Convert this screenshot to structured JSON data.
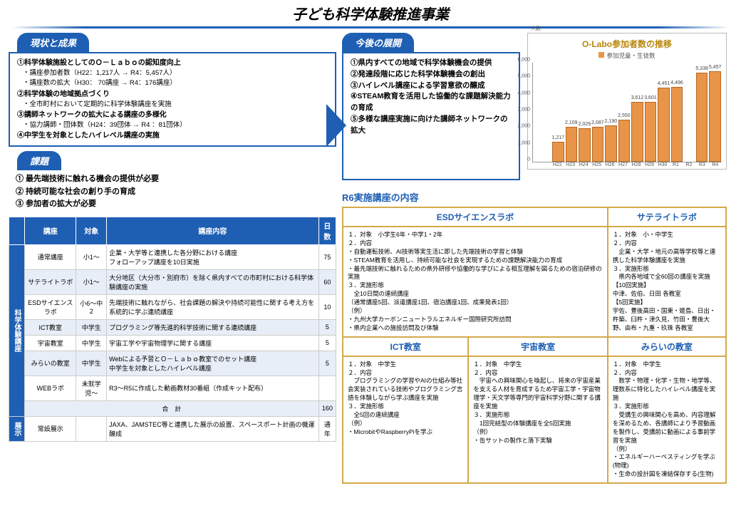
{
  "title": "子ども科学体験推進事業",
  "tabs": {
    "status": "現状と成果",
    "issues": "課題",
    "future": "今後の展開"
  },
  "status_items": [
    {
      "main": "①科学体験施設としてのＯ－Ｌａｂｏの認知度向上"
    },
    {
      "sub": "・講座参加者数（H22：1,217人 → R4：5,457人）"
    },
    {
      "sub": "・講座数の拡大（H30： 70講座 → R4：176講座）"
    },
    {
      "main": "②科学体験の地域拠点づくり"
    },
    {
      "sub": "・全市町村において定期的に科学体験講座を実施"
    },
    {
      "main": "③講師ネットワークの拡大による講座の多様化"
    },
    {
      "sub": "・協力講師・団体数（H24：39団体 → R4 ：81団体）"
    },
    {
      "main": "④中学生を対象としたハイレベル講座の実施"
    }
  ],
  "issues": [
    "① 最先端技術に触れる機会の提供が必要",
    "② 持続可能な社会の創り手の育成",
    "③ 参加者の拡大が必要"
  ],
  "course_headers": [
    "",
    "講座",
    "対象",
    "講座内容",
    "日数"
  ],
  "course_cat1": "科学体験講座",
  "course_cat2": "展示",
  "courses": [
    {
      "name": "通常講座",
      "target": "小1～",
      "content": "企業・大学等と連携した各分野における講座\nフォローアップ講座を10日実施",
      "days": "75",
      "alt": 0
    },
    {
      "name": "サテライトラボ",
      "target": "小1～",
      "content": "大分地区（大分市・別府市）を除く県内すべての市町村における科学体験講座の実施",
      "days": "60",
      "alt": 1
    },
    {
      "name": "ESDサイエンスラボ",
      "target": "小6～中2",
      "content": "先端技術に触れながら、社会課題の解決や持続可能性に関する考え方を系統的に学ぶ連続講座",
      "days": "10",
      "alt": 0
    },
    {
      "name": "ICT教室",
      "target": "中学生",
      "content": "プログラミング等先進的科学技術に関する連続講座",
      "days": "5",
      "alt": 1
    },
    {
      "name": "宇宙教室",
      "target": "中学生",
      "content": "宇宙工学や宇宙物理学に関する講座",
      "days": "5",
      "alt": 0
    },
    {
      "name": "みらいの教室",
      "target": "中学生",
      "content": "Webによる予習とＯ－Ｌａｂｏ教室でのセット講座\n中学生を対象としたハイレベル講座",
      "days": "5",
      "alt": 1
    },
    {
      "name": "WEBラボ",
      "target": "未就学児～",
      "content": "R3～R5に作成した動画教材30番組（作成キット配布）",
      "days": "",
      "alt": 0
    }
  ],
  "total_label": "合　計",
  "total_days": "160",
  "exhibit": {
    "name": "常設展示",
    "content": "JAXA、JAMSTEC等と連携した展示の設置、スペースポート計画の機運醸成",
    "days": "通年"
  },
  "future_items": [
    "①県内すべての地域で科学体験機会の提供",
    "②発達段階に応じた科学体験機会の創出",
    "③ハイレベル講座による学習意欲の醸成",
    "④STEAM教育を活用した協働的な課題解決能力の育成",
    "⑤多様な講座実施に向けた講師ネットワークの拡大"
  ],
  "chart": {
    "title": "O-Labo参加者数の推移",
    "y_label": "人数",
    "legend": "参加児童・生徒数",
    "ymax": 6000,
    "yticks": [
      0,
      1000,
      2000,
      3000,
      4000,
      5000,
      6000
    ],
    "categories": [
      "H22",
      "H23",
      "H24",
      "H25",
      "H26",
      "H27",
      "H28",
      "H29",
      "H30",
      "R1",
      "R2",
      "R3",
      "R4"
    ],
    "values": [
      1217,
      2109,
      2029,
      2087,
      2190,
      2550,
      3612,
      3601,
      4451,
      4496,
      null,
      5338,
      5457
    ]
  },
  "r6_title": "R6実施講座の内容",
  "grid": {
    "h1": "ESDサイエンスラボ",
    "h2": "サテライトラボ",
    "h3": "ICT教室",
    "h4": "宇宙教室",
    "h5": "みらいの教室",
    "c1": "１．対象　小学生6年・中学1・2年\n２．内容\n・自動運転技術、AI技術等実生活に即した先端技術の学習と体験\n・STEAM教育を活用し、持続可能な社会を実現するための課題解決能力の育成\n・最先端技術に触れるための県外研修や協働的な学びによる相互理解を図るための宿泊研修の実施\n３．実施形態\n　全10日間の連続講座\n（通常講座5回、派遣講座1回、宿泊講座1回、成果発表1回）\n（例）\n・九州大学カーボンニュートラルエネルギー国際研究所訪問\n・県内企業への施設訪問及び体験",
    "c2": "１．対象　小・中学生\n２．内容\n　企業・大学・地元の高等学校等と連携した科学体験講座を実施\n３．実施形態\n　県内各地域で全60回の講座を実施\n【10回実施】\n中津、佐伯、日田 各教室\n【5回実施】\n宇佐、豊後高田・国東・姫島、日出・杵築、臼杵・津久見、竹田・豊後大野、由布・九重・玖珠 各教室",
    "c3": "１．対象　中学生\n２．内容\n　プログラミングの学習やAIの仕組み等社会実装されている技術やプログラミング言語を体験しながら学ぶ講座を実施\n３．実施形態\n　全5回の連続講座\n（例）\n・MicrobitやRaspberryPiを学ぶ",
    "c4": "１．対象　中学生\n２．内容\n　宇宙への興味関心を喚起し、将来の宇宙産業を支える人材を育成するため宇宙工学・宇宙物理学・天文学等専門的宇宙科学分野に関する講座を実施\n３．実施形態\n　1回完結型の体験講座を全5回実施\n（例）\n・缶サットの製作と落下実験",
    "c5": "１．対象　中学生\n２．内容\n　数学・物理・化学・生物・地学等、理数系に特化したハイレベル講座を実施\n３．実施形態\n　受講生の興味関心を高め、内容理解を深めるため、各講師により予習動画を製作し、受講前に動画による事前学習を実施\n（例）\n・エネルギーハーベスティングを学ぶ(物理)\n・生命の設計図を凍結保存する(生物)"
  }
}
